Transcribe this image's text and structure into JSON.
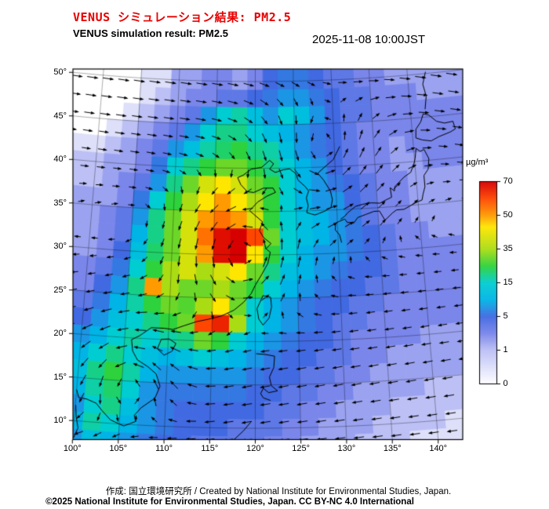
{
  "header": {
    "title_ja": "VENUS シミュレーション結果: PM2.5",
    "title_en": "VENUS simulation result: PM2.5",
    "timestamp": "2025-11-08 10:00JST"
  },
  "footer": {
    "credit": "作成:  国立環境研究所 / Created by National Institute for Environmental Studies, Japan.",
    "license": "©2025 National Institute for Environmental Studies, Japan. CC BY-NC 4.0 International"
  },
  "chart_data": {
    "type": "heatmap",
    "title": "VENUS simulation result: PM2.5",
    "subtitle": "VENUS シミュレーション結果: PM2.5",
    "timestamp": "2025-11-08 10:00JST",
    "units": "µg/m³",
    "projection": "lambert-conic",
    "lon_range": [
      100,
      142.5
    ],
    "lat_range": [
      8,
      50
    ],
    "lon_ticks": [
      100,
      105,
      110,
      115,
      120,
      125,
      130,
      135,
      140
    ],
    "lon_tick_labels": [
      "100°",
      "105°",
      "110°",
      "115°",
      "120°",
      "125°",
      "130°",
      "135°",
      "140°"
    ],
    "lat_ticks": [
      10,
      15,
      20,
      25,
      30,
      35,
      40,
      45,
      50
    ],
    "lat_tick_labels": [
      "10°",
      "15°",
      "20°",
      "25°",
      "30°",
      "35°",
      "40°",
      "45°",
      "50°"
    ],
    "colorbar": {
      "unit": "µg/m³",
      "levels": [
        0,
        1,
        5,
        15,
        35,
        50,
        70
      ],
      "level_labels": [
        "0",
        "1",
        "5",
        "15",
        "35",
        "50",
        "70"
      ],
      "anchors": [
        [
          0,
          "#ffffff"
        ],
        [
          1,
          "#bcc0f5"
        ],
        [
          3,
          "#7a86ea"
        ],
        [
          5,
          "#4169e1"
        ],
        [
          10,
          "#00b4e6"
        ],
        [
          15,
          "#00cdd2"
        ],
        [
          25,
          "#2dd23c"
        ],
        [
          35,
          "#aadc14"
        ],
        [
          45,
          "#ffe600"
        ],
        [
          50,
          "#ff9b00"
        ],
        [
          60,
          "#ff4600"
        ],
        [
          70,
          "#d70000"
        ]
      ]
    },
    "grid": {
      "lon_start": 100,
      "lon_step": 2,
      "lat_start": 50,
      "lat_step": -2,
      "values": [
        [
          0,
          0,
          0,
          0.5,
          0.5,
          2,
          2,
          3,
          3,
          2,
          3,
          5,
          6,
          6,
          5,
          4,
          4,
          3,
          3,
          2,
          2,
          2
        ],
        [
          0,
          0,
          0,
          0.5,
          1,
          2,
          3,
          3,
          4,
          4,
          5,
          6,
          8,
          8,
          6,
          5,
          4,
          4,
          3,
          3,
          3,
          2
        ],
        [
          0,
          0,
          0.5,
          1,
          2,
          3,
          4,
          8,
          15,
          18,
          12,
          8,
          15,
          12,
          8,
          5,
          4,
          4,
          3,
          3,
          3,
          3
        ],
        [
          0,
          0.5,
          1,
          2,
          3,
          4,
          8,
          15,
          20,
          20,
          15,
          12,
          10,
          8,
          6,
          5,
          4,
          3,
          3,
          3,
          3,
          3
        ],
        [
          0.5,
          1,
          2,
          3,
          4,
          8,
          12,
          18,
          22,
          25,
          20,
          18,
          12,
          8,
          6,
          5,
          4,
          3,
          3,
          2,
          3,
          3
        ],
        [
          1,
          2,
          2,
          3,
          6,
          15,
          20,
          25,
          30,
          30,
          25,
          20,
          15,
          10,
          8,
          5,
          4,
          3,
          3,
          2,
          2,
          3
        ],
        [
          1,
          2,
          3,
          4,
          8,
          20,
          30,
          40,
          45,
          40,
          30,
          25,
          15,
          10,
          8,
          6,
          5,
          4,
          3,
          3,
          2,
          2
        ],
        [
          2,
          2,
          3,
          6,
          15,
          25,
          35,
          45,
          50,
          45,
          35,
          25,
          15,
          10,
          8,
          8,
          5,
          4,
          3,
          3,
          2,
          2
        ],
        [
          2,
          3,
          4,
          8,
          20,
          30,
          40,
          50,
          55,
          50,
          40,
          25,
          15,
          12,
          10,
          8,
          6,
          4,
          3,
          3,
          2,
          2
        ],
        [
          2,
          3,
          4,
          10,
          20,
          30,
          40,
          55,
          68,
          70,
          60,
          30,
          15,
          12,
          10,
          8,
          6,
          5,
          4,
          3,
          3,
          2
        ],
        [
          2,
          3,
          5,
          12,
          22,
          30,
          40,
          50,
          68,
          70,
          45,
          25,
          15,
          10,
          8,
          8,
          6,
          5,
          4,
          3,
          3,
          3
        ],
        [
          3,
          4,
          6,
          15,
          25,
          35,
          40,
          35,
          40,
          45,
          30,
          20,
          12,
          10,
          8,
          6,
          5,
          5,
          4,
          3,
          3,
          3
        ],
        [
          3,
          5,
          8,
          20,
          50,
          35,
          30,
          30,
          35,
          30,
          25,
          15,
          10,
          8,
          6,
          5,
          5,
          4,
          4,
          3,
          3,
          3
        ],
        [
          4,
          6,
          10,
          18,
          25,
          30,
          28,
          35,
          45,
          30,
          15,
          10,
          8,
          6,
          5,
          5,
          4,
          4,
          3,
          3,
          3,
          3
        ],
        [
          5,
          8,
          12,
          15,
          20,
          25,
          30,
          60,
          65,
          35,
          15,
          10,
          8,
          6,
          5,
          4,
          4,
          3,
          3,
          3,
          3,
          3
        ],
        [
          8,
          10,
          15,
          18,
          15,
          18,
          20,
          30,
          25,
          15,
          10,
          8,
          6,
          5,
          5,
          4,
          3,
          3,
          3,
          3,
          2,
          2
        ],
        [
          10,
          15,
          20,
          15,
          12,
          10,
          12,
          15,
          12,
          10,
          8,
          6,
          5,
          5,
          4,
          4,
          3,
          3,
          2,
          2,
          2,
          2
        ],
        [
          12,
          20,
          25,
          18,
          10,
          8,
          8,
          8,
          8,
          8,
          6,
          5,
          5,
          4,
          4,
          3,
          3,
          2,
          2,
          2,
          2,
          2
        ],
        [
          10,
          18,
          22,
          15,
          8,
          6,
          6,
          6,
          6,
          6,
          5,
          5,
          4,
          4,
          3,
          3,
          2,
          2,
          2,
          2,
          1,
          1
        ],
        [
          8,
          15,
          20,
          12,
          8,
          6,
          5,
          5,
          5,
          5,
          5,
          4,
          4,
          3,
          3,
          2,
          2,
          2,
          1,
          1,
          1,
          1
        ],
        [
          10,
          18,
          15,
          10,
          8,
          6,
          5,
          5,
          5,
          4,
          4,
          4,
          3,
          3,
          2,
          2,
          2,
          1,
          1,
          1,
          1,
          0.5
        ],
        [
          8,
          12,
          10,
          8,
          6,
          5,
          5,
          4,
          4,
          4,
          4,
          3,
          3,
          2,
          2,
          2,
          1,
          1,
          1,
          0.5,
          0.5,
          0.5
        ]
      ]
    },
    "wind": {
      "background_u": [
        [
          52,
          1.0
        ],
        [
          46,
          0.85
        ],
        [
          40,
          0.5
        ],
        [
          36,
          0.2
        ],
        [
          33,
          0
        ],
        [
          30,
          -0.2
        ],
        [
          26,
          -0.4
        ],
        [
          22,
          -0.6
        ],
        [
          16,
          -0.8
        ],
        [
          6,
          -0.8
        ]
      ],
      "background_v": [
        [
          52,
          -0.15
        ],
        [
          42,
          -0.1
        ],
        [
          34,
          0.05
        ],
        [
          26,
          -0.05
        ],
        [
          16,
          -0.15
        ],
        [
          6,
          -0.1
        ]
      ],
      "vortices": [
        {
          "lon": 118.5,
          "lat": 30.5,
          "strength": 1.1,
          "radius": 6.5
        },
        {
          "lon": 128.5,
          "lat": 40.5,
          "strength": 0.9,
          "radius": 7
        },
        {
          "lon": 105.5,
          "lat": 16,
          "strength": 1.0,
          "radius": 5
        }
      ]
    },
    "coastlines": [
      [
        [
          105.5,
          9.8
        ],
        [
          106.8,
          10.4
        ],
        [
          106.6,
          11.1
        ],
        [
          107.3,
          12
        ],
        [
          108.8,
          13.2
        ],
        [
          109.3,
          14.6
        ],
        [
          108.8,
          16
        ],
        [
          107.8,
          16.8
        ],
        [
          106.6,
          17.5
        ],
        [
          106,
          18.5
        ],
        [
          105.8,
          19.8
        ],
        [
          106.7,
          20.3
        ],
        [
          108,
          21.3
        ],
        [
          109.5,
          21.3
        ],
        [
          110.5,
          21.2
        ],
        [
          111.8,
          21.7
        ],
        [
          113.2,
          22.2
        ],
        [
          114.5,
          22.5
        ],
        [
          116,
          22.9
        ],
        [
          117.5,
          23.6
        ],
        [
          118.6,
          24.5
        ],
        [
          119.5,
          25.5
        ],
        [
          120,
          26.5
        ],
        [
          120.8,
          27.8
        ],
        [
          121.5,
          29
        ],
        [
          121.8,
          30.3
        ],
        [
          121.3,
          30.7
        ],
        [
          121.9,
          31.3
        ],
        [
          121,
          32
        ],
        [
          120.5,
          32.8
        ],
        [
          120.9,
          33.8
        ],
        [
          119.8,
          34.7
        ],
        [
          119.3,
          35.1
        ],
        [
          120.3,
          36.1
        ],
        [
          121.5,
          36.8
        ],
        [
          122.5,
          37.2
        ],
        [
          122.2,
          37.7
        ],
        [
          121,
          37.7
        ],
        [
          119.8,
          37.2
        ],
        [
          119,
          37.3
        ],
        [
          118.2,
          38.1
        ],
        [
          117.8,
          38.9
        ],
        [
          118.5,
          39.2
        ],
        [
          119.5,
          39.9
        ],
        [
          120.8,
          40.1
        ],
        [
          121.8,
          40.9
        ],
        [
          122.3,
          40.5
        ],
        [
          121.8,
          39.9
        ],
        [
          122.5,
          39.5
        ],
        [
          123.5,
          39.8
        ],
        [
          124.3,
          39.9
        ]
      ],
      [
        [
          124.3,
          39.9
        ],
        [
          125.1,
          39.3
        ],
        [
          125.3,
          38.6
        ],
        [
          126.2,
          37.8
        ],
        [
          126.6,
          37.3
        ],
        [
          126.3,
          36.5
        ],
        [
          126.5,
          35.6
        ],
        [
          126.3,
          34.8
        ],
        [
          127.3,
          34.5
        ],
        [
          128.5,
          34.9
        ],
        [
          129.3,
          35.3
        ],
        [
          129.5,
          36.2
        ],
        [
          129.3,
          37.2
        ],
        [
          128.5,
          38.5
        ],
        [
          127.8,
          39.3
        ],
        [
          128.7,
          40
        ],
        [
          129.8,
          40.8
        ],
        [
          130.7,
          42.3
        ]
      ],
      [
        [
          130.4,
          31.2
        ],
        [
          130.2,
          32.1
        ],
        [
          129.7,
          32.7
        ],
        [
          129.8,
          33.5
        ],
        [
          130.9,
          33.9
        ],
        [
          131.2,
          33.5
        ],
        [
          132,
          33.4
        ],
        [
          132.5,
          34
        ],
        [
          133.5,
          34.3
        ],
        [
          134.5,
          34.6
        ],
        [
          135.2,
          34.6
        ],
        [
          135.8,
          33.5
        ],
        [
          136.8,
          34.3
        ],
        [
          137.3,
          34.6
        ],
        [
          138.2,
          34.6
        ],
        [
          138.9,
          34.9
        ],
        [
          139.8,
          35.3
        ],
        [
          140.5,
          35.5
        ],
        [
          140.7,
          36.2
        ],
        [
          141,
          37
        ],
        [
          141,
          38.3
        ],
        [
          141.6,
          39
        ],
        [
          141.8,
          40.2
        ],
        [
          141.3,
          41.3
        ],
        [
          140.8,
          41.1
        ],
        [
          140.3,
          41.5
        ],
        [
          140.1,
          40.4
        ],
        [
          139.9,
          39.8
        ],
        [
          139.4,
          38.8
        ],
        [
          138.5,
          38.3
        ],
        [
          137.3,
          37.3
        ],
        [
          137.2,
          36.8
        ],
        [
          136.7,
          37.2
        ],
        [
          136.8,
          36.1
        ],
        [
          136,
          35.8
        ],
        [
          135.3,
          35.5
        ],
        [
          134.3,
          35.6
        ],
        [
          133.2,
          35.5
        ],
        [
          132.3,
          35.3
        ],
        [
          131.3,
          34.6
        ],
        [
          130.9,
          34.2
        ],
        [
          130.4,
          33.9
        ]
      ],
      [
        [
          140.4,
          42.7
        ],
        [
          141.2,
          42.4
        ],
        [
          142.3,
          42.2
        ],
        [
          143.3,
          42.6
        ],
        [
          144.8,
          43
        ],
        [
          145.5,
          43.3
        ],
        [
          145.3,
          44.2
        ],
        [
          144.2,
          44.1
        ],
        [
          143.2,
          44.4
        ],
        [
          142.3,
          45.2
        ],
        [
          141.6,
          45.4
        ],
        [
          141.2,
          44.5
        ],
        [
          140.5,
          43.7
        ],
        [
          140.4,
          42.7
        ]
      ],
      [
        [
          121.8,
          25.1
        ],
        [
          120.9,
          25.3
        ],
        [
          120.2,
          23.8
        ],
        [
          120.4,
          22.6
        ],
        [
          120.9,
          21.9
        ],
        [
          121.6,
          22.7
        ],
        [
          121.9,
          24
        ],
        [
          121.8,
          25.1
        ]
      ],
      [
        [
          109.2,
          20
        ],
        [
          110.1,
          20.1
        ],
        [
          110.9,
          19.6
        ],
        [
          110.5,
          18.7
        ],
        [
          109.6,
          18.2
        ],
        [
          108.8,
          18.9
        ],
        [
          109.2,
          20
        ]
      ],
      [
        [
          120.1,
          18.6
        ],
        [
          121.2,
          18.5
        ],
        [
          122.2,
          18.3
        ],
        [
          122.1,
          17
        ],
        [
          121.6,
          15.9
        ],
        [
          121.8,
          14.9
        ],
        [
          122.5,
          14.3
        ],
        [
          121.5,
          14.1
        ],
        [
          120.9,
          14.6
        ],
        [
          120.6,
          14
        ],
        [
          120.9,
          13.5
        ],
        [
          121.7,
          13.2
        ]
      ],
      [
        [
          141.9,
          45.9
        ],
        [
          142.2,
          47.4
        ],
        [
          141.9,
          48.8
        ],
        [
          142.4,
          50.2
        ]
      ],
      [
        [
          100,
          13.6
        ],
        [
          100.3,
          12.7
        ],
        [
          101.2,
          12.6
        ],
        [
          102.3,
          12.2
        ],
        [
          103,
          11.4
        ],
        [
          104,
          10.4
        ],
        [
          105.5,
          9.8
        ]
      ],
      [
        [
          100.1,
          8
        ],
        [
          100.5,
          9.2
        ],
        [
          100.2,
          10.5
        ],
        [
          100.05,
          11.8
        ]
      ],
      [
        [
          117.3,
          8.3
        ],
        [
          118.7,
          9.7
        ],
        [
          119.5,
          10.7
        ]
      ]
    ]
  }
}
